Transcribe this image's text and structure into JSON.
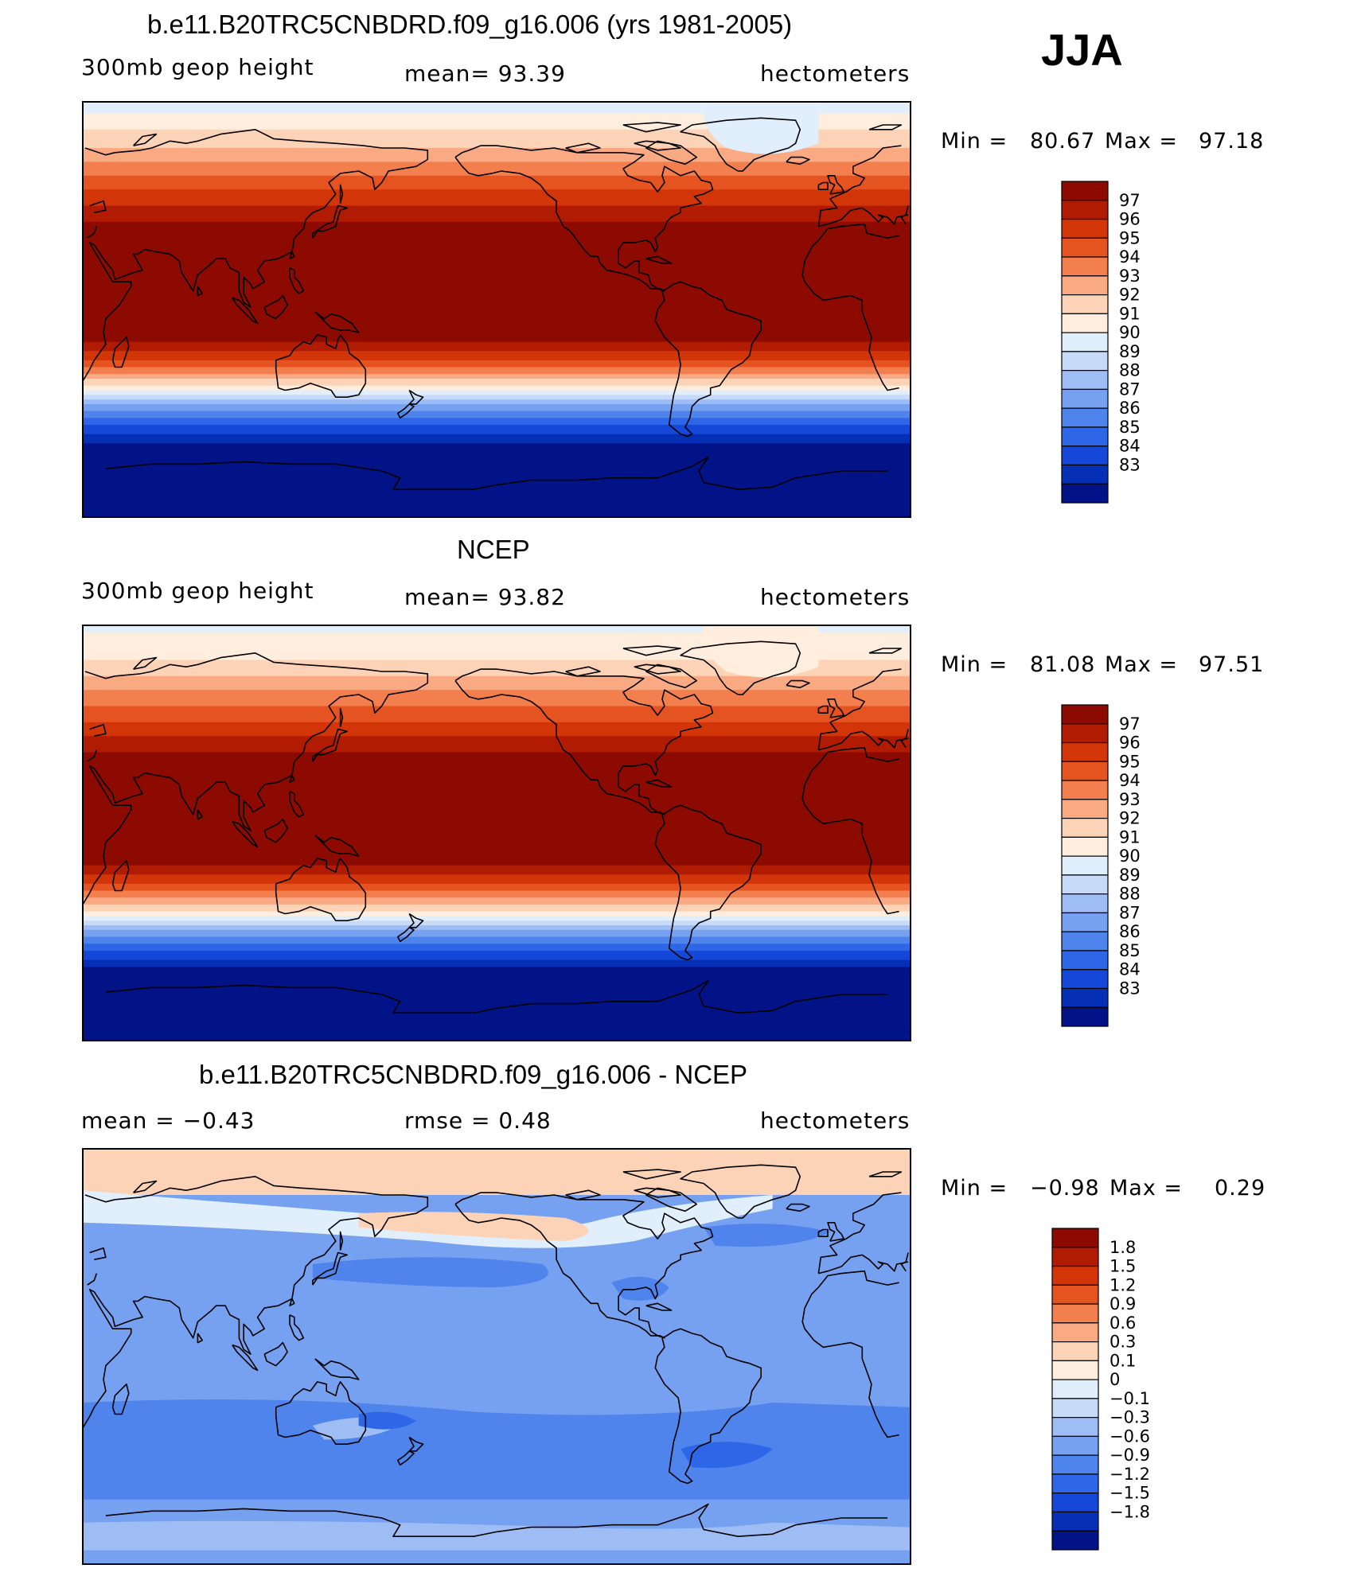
{
  "season": "JJA",
  "colors": {
    "abs": [
      "#021287",
      "#0530b5",
      "#1548d8",
      "#2d67e8",
      "#4f84ec",
      "#76a0f0",
      "#9fbdf5",
      "#c7daf8",
      "#e1eefb",
      "#ffeedd",
      "#fdd3b8",
      "#f9aa83",
      "#f37f4f",
      "#e55320",
      "#d13508",
      "#b11b02",
      "#8c0a00"
    ],
    "diff": [
      "#021287",
      "#0530b5",
      "#1548d8",
      "#2d67e8",
      "#4f84ec",
      "#76a0f0",
      "#9fbdf5",
      "#c7daf8",
      "#e1eefb",
      "#ffeedd",
      "#fdd3b8",
      "#f9aa83",
      "#f37f4f",
      "#e55320",
      "#d13508",
      "#b11b02",
      "#8c0a00"
    ]
  },
  "panels": [
    {
      "title": "b.e11.B20TRC5CNBDRD.f09_g16.006 (yrs 1981-2005)",
      "left": "300mb  geop  height",
      "mid": "mean=   93.39",
      "right": "hectometers",
      "min_label": "Min  =",
      "min": "80.67",
      "max_label": "Max  =",
      "max": "97.18",
      "kind": "abs",
      "colorbar": [
        "97",
        "96",
        "95",
        "94",
        "93",
        "92",
        "91",
        "90",
        "89",
        "88",
        "87",
        "86",
        "85",
        "84",
        "83"
      ]
    },
    {
      "title": "NCEP",
      "left": "300mb  geop  height",
      "mid": "mean=   93.82",
      "right": "hectometers",
      "min_label": "Min  =",
      "min": "81.08",
      "max_label": "Max  =",
      "max": "97.51",
      "kind": "abs",
      "colorbar": [
        "97",
        "96",
        "95",
        "94",
        "93",
        "92",
        "91",
        "90",
        "89",
        "88",
        "87",
        "86",
        "85",
        "84",
        "83"
      ]
    },
    {
      "title": "b.e11.B20TRC5CNBDRD.f09_g16.006 - NCEP",
      "left": "mean  =   −0.43",
      "mid": "rmse  =    0.48",
      "right": "hectometers",
      "min_label": "Min  =",
      "min": "−0.98",
      "max_label": "Max  =",
      "max": "0.29",
      "kind": "diff",
      "colorbar": [
        "1.8",
        "1.5",
        "1.2",
        "0.9",
        "0.6",
        "0.3",
        "0.1",
        "0",
        "−0.1",
        "−0.3",
        "−0.6",
        "−0.9",
        "−1.2",
        "−1.5",
        "−1.8"
      ]
    }
  ]
}
